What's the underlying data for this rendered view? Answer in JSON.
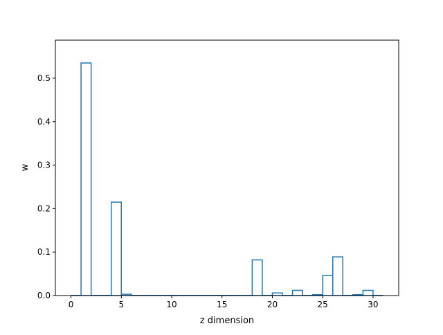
{
  "chart_data": {
    "type": "bar",
    "style": "step-histogram",
    "xlabel": "z dimension",
    "ylabel": "w",
    "xlim": [
      -1.55,
      32.55
    ],
    "ylim": [
      0,
      0.5875
    ],
    "xticks": [
      0,
      5,
      10,
      15,
      20,
      25,
      30
    ],
    "xtick_labels": [
      "0",
      "5",
      "10",
      "15",
      "20",
      "25",
      "30"
    ],
    "yticks": [
      0.0,
      0.1,
      0.2,
      0.3,
      0.4,
      0.5
    ],
    "ytick_labels": [
      "0.0",
      "0.1",
      "0.2",
      "0.3",
      "0.4",
      "0.5"
    ],
    "bin_edges": [
      0,
      1,
      2,
      3,
      4,
      5,
      6,
      7,
      8,
      9,
      10,
      11,
      12,
      13,
      14,
      15,
      16,
      17,
      18,
      19,
      20,
      21,
      22,
      23,
      24,
      25,
      26,
      27,
      28,
      29,
      30,
      31
    ],
    "bar_width": 1,
    "values": [
      0.0,
      0.535,
      0.0,
      0.0,
      0.215,
      0.003,
      0.0,
      0.0,
      0.0,
      0.0,
      0.0,
      0.0,
      0.0,
      0.0,
      0.0,
      0.0,
      0.0,
      0.0,
      0.082,
      0.0,
      0.006,
      0.0,
      0.012,
      0.0,
      0.002,
      0.046,
      0.089,
      0.0,
      0.002,
      0.012,
      0.0
    ],
    "line_color": "#1f77b4",
    "grid": false
  }
}
